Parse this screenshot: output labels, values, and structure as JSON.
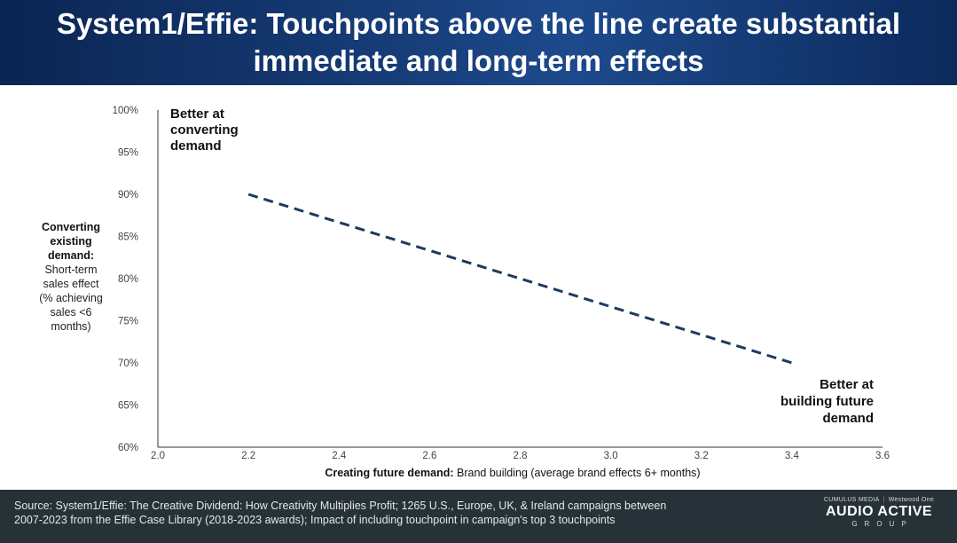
{
  "header": {
    "title_line1": "System1/Effie: Touchpoints above the line create substantial",
    "title_line2": "immediate and long-term effects"
  },
  "chart_data": {
    "type": "line",
    "x_ticks": [
      "2.0",
      "2.2",
      "2.4",
      "2.6",
      "2.8",
      "3.0",
      "3.2",
      "3.4",
      "3.6"
    ],
    "y_ticks": [
      "60%",
      "65%",
      "70%",
      "75%",
      "80%",
      "85%",
      "90%",
      "95%",
      "100%"
    ],
    "xlim": [
      2.0,
      3.6
    ],
    "ylim": [
      60,
      100
    ],
    "series": [
      {
        "line_style": "dashed",
        "color": "#1f3a5f",
        "x": [
          2.2,
          3.4
        ],
        "y": [
          90,
          70
        ]
      }
    ],
    "xlabel_bold": "Creating future demand:",
    "xlabel_rest": " Brand building (average brand effects 6+ months)",
    "ylabel_bold": [
      "Converting",
      "existing",
      "demand:"
    ],
    "ylabel_rest": [
      "Short-term",
      "sales effect",
      "(% achieving",
      "sales <6",
      "months)"
    ],
    "annotations": {
      "top_left": [
        "Better at",
        "converting",
        "demand"
      ],
      "bottom_right": [
        "Better at",
        "building future",
        "demand"
      ]
    },
    "grid": false
  },
  "footer": {
    "source_line1": "Source: System1/Effie: The Creative Dividend: How Creativity Multiplies Profit; 1265 U.S., Europe, UK, & Ireland campaigns between",
    "source_line2": "2007-2023 from the Effie Case Library (2018-2023 awards); Impact of including touchpoint in campaign's top 3 touchpoints",
    "logo_top_left": "CUMULUS MEDIA",
    "logo_top_right": "Westwood One",
    "logo_main": "AUDIO ACTIVE",
    "logo_sub": "GROUP"
  }
}
